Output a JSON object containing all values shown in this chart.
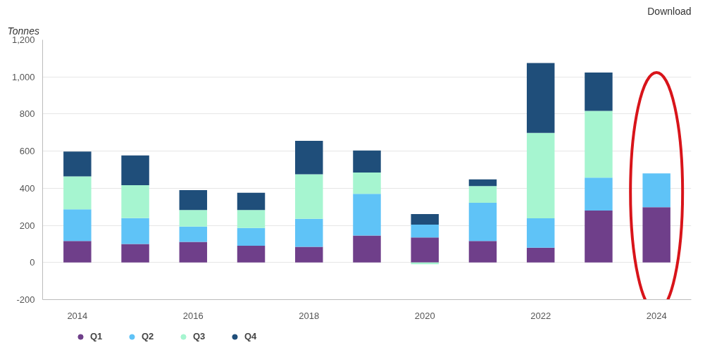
{
  "chart_data": {
    "type": "bar",
    "stacked": true,
    "ylabel": "Tonnes",
    "categories": [
      "2014",
      null,
      "2016",
      null,
      "2018",
      null,
      "2020",
      null,
      "2022",
      null,
      "2024"
    ],
    "series": [
      {
        "name": "Q1",
        "color": "#6f3f8a",
        "values": [
          116,
          100,
          111,
          90,
          85,
          145,
          135,
          116,
          80,
          280,
          298
        ]
      },
      {
        "name": "Q2",
        "color": "#5fc3f7",
        "values": [
          171,
          139,
          83,
          96,
          150,
          225,
          69,
          206,
          158,
          177,
          182
        ]
      },
      {
        "name": "Q3",
        "color": "#a6f5d0",
        "values": [
          177,
          178,
          89,
          97,
          240,
          115,
          -9,
          90,
          460,
          360,
          null
        ]
      },
      {
        "name": "Q4",
        "color": "#1f4e7a",
        "values": [
          134,
          160,
          107,
          93,
          181,
          118,
          57,
          36,
          377,
          207,
          null
        ]
      }
    ],
    "ylim": [
      -200,
      1200
    ],
    "yticks": [
      -200,
      0,
      200,
      400,
      600,
      800,
      {
        "value": 1000,
        "label": "1,000"
      },
      {
        "value": 1200,
        "label": "1,200"
      }
    ],
    "grid": "y",
    "legend": "bottom left",
    "annotations": [
      "Download"
    ]
  }
}
